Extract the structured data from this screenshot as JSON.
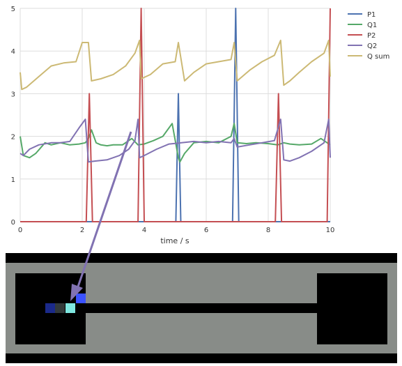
{
  "chart_data": {
    "type": "line",
    "xlabel": "time / s",
    "ylabel": "",
    "xlim": [
      0,
      10
    ],
    "ylim": [
      0,
      5
    ],
    "xticks": [
      0,
      2,
      4,
      6,
      8,
      10
    ],
    "yticks": [
      0,
      1,
      2,
      3,
      4,
      5
    ],
    "grid": true,
    "legend_position": "right",
    "series": [
      {
        "name": "P1",
        "color": "#4c72b0",
        "x": [
          0,
          5.0,
          5.02,
          5.06,
          5.1,
          5.14,
          5.18,
          5.22,
          6.8,
          6.85,
          6.9,
          6.95,
          7.0,
          7.05,
          10
        ],
        "y": [
          0,
          0,
          0,
          1.5,
          3.0,
          1.5,
          0,
          0,
          0,
          0,
          2.5,
          5.0,
          2.5,
          0,
          0
        ]
      },
      {
        "name": "Q1",
        "color": "#55a868",
        "x": [
          0,
          0.1,
          0.3,
          0.5,
          0.8,
          1.0,
          1.3,
          1.6,
          1.9,
          2.1,
          2.2,
          2.3,
          2.45,
          2.6,
          2.8,
          3.0,
          3.3,
          3.6,
          3.8,
          4.0,
          4.3,
          4.6,
          4.9,
          5.1,
          5.15,
          5.3,
          5.6,
          6.0,
          6.4,
          6.8,
          6.9,
          7.0,
          7.3,
          7.6,
          8.0,
          8.3,
          8.5,
          8.7,
          9.0,
          9.4,
          9.7,
          10
        ],
        "y": [
          2.0,
          1.55,
          1.5,
          1.6,
          1.85,
          1.8,
          1.85,
          1.8,
          1.82,
          1.85,
          1.95,
          2.15,
          1.85,
          1.8,
          1.78,
          1.8,
          1.8,
          1.95,
          1.8,
          1.82,
          1.9,
          2.0,
          2.3,
          1.5,
          1.4,
          1.6,
          1.85,
          1.88,
          1.85,
          2.0,
          2.3,
          1.85,
          1.83,
          1.85,
          1.83,
          1.8,
          1.85,
          1.82,
          1.8,
          1.82,
          1.95,
          1.8
        ]
      },
      {
        "name": "P2",
        "color": "#c44e52",
        "x": [
          0,
          2.1,
          2.13,
          2.18,
          2.23,
          2.28,
          2.33,
          2.36,
          3.75,
          3.8,
          3.85,
          3.9,
          3.95,
          4.0,
          8.2,
          8.23,
          8.28,
          8.33,
          8.38,
          8.43,
          8.46,
          9.9,
          9.95,
          10
        ],
        "y": [
          0,
          0,
          0,
          1.5,
          3.0,
          1.5,
          0,
          0,
          0,
          0,
          2.5,
          5.0,
          2.5,
          0,
          0,
          0,
          1.5,
          3.0,
          1.5,
          0,
          0,
          0,
          2.5,
          5.0
        ]
      },
      {
        "name": "Q2",
        "color": "#8172b2",
        "x": [
          0,
          0.1,
          0.3,
          0.6,
          1.0,
          1.3,
          1.6,
          1.9,
          2.1,
          2.2,
          2.4,
          2.8,
          3.2,
          3.5,
          3.7,
          3.8,
          3.85,
          4.0,
          4.4,
          4.8,
          5.2,
          5.6,
          6.0,
          6.4,
          6.8,
          6.9,
          7.0,
          7.4,
          7.8,
          8.2,
          8.4,
          8.5,
          8.7,
          9.0,
          9.4,
          9.8,
          9.95,
          10
        ],
        "y": [
          1.6,
          1.55,
          1.7,
          1.8,
          1.85,
          1.85,
          1.88,
          2.2,
          2.4,
          1.4,
          1.42,
          1.45,
          1.55,
          1.7,
          1.9,
          2.4,
          1.5,
          1.55,
          1.7,
          1.82,
          1.85,
          1.88,
          1.85,
          1.88,
          1.85,
          1.95,
          1.75,
          1.8,
          1.85,
          1.9,
          2.4,
          1.45,
          1.42,
          1.5,
          1.65,
          1.85,
          2.4,
          1.5
        ]
      },
      {
        "name": "Q sum",
        "color": "#ccb974",
        "x": [
          0,
          0.05,
          0.2,
          0.6,
          1.0,
          1.4,
          1.8,
          2.0,
          2.2,
          2.3,
          2.6,
          3.0,
          3.4,
          3.7,
          3.85,
          3.9,
          4.2,
          4.6,
          5.0,
          5.1,
          5.3,
          5.6,
          6.0,
          6.4,
          6.8,
          6.9,
          7.0,
          7.4,
          7.8,
          8.2,
          8.4,
          8.5,
          8.7,
          9.0,
          9.4,
          9.8,
          9.95,
          10
        ],
        "y": [
          3.5,
          3.1,
          3.15,
          3.4,
          3.65,
          3.72,
          3.75,
          4.2,
          4.2,
          3.3,
          3.35,
          3.45,
          3.65,
          3.95,
          4.25,
          3.35,
          3.45,
          3.7,
          3.75,
          4.2,
          3.3,
          3.5,
          3.7,
          3.75,
          3.8,
          4.2,
          3.3,
          3.55,
          3.75,
          3.9,
          4.25,
          3.2,
          3.3,
          3.5,
          3.75,
          3.95,
          4.25,
          3.4
        ]
      }
    ]
  },
  "simulation": {
    "background_color": "#000000",
    "channel_color": "#888c88",
    "arrow_color": "#8172b2",
    "particles": [
      {
        "color": "#1b2a8a"
      },
      {
        "color": "#333a3a"
      },
      {
        "color": "#7fe7e0"
      },
      {
        "color": "#3a52ff"
      }
    ]
  }
}
